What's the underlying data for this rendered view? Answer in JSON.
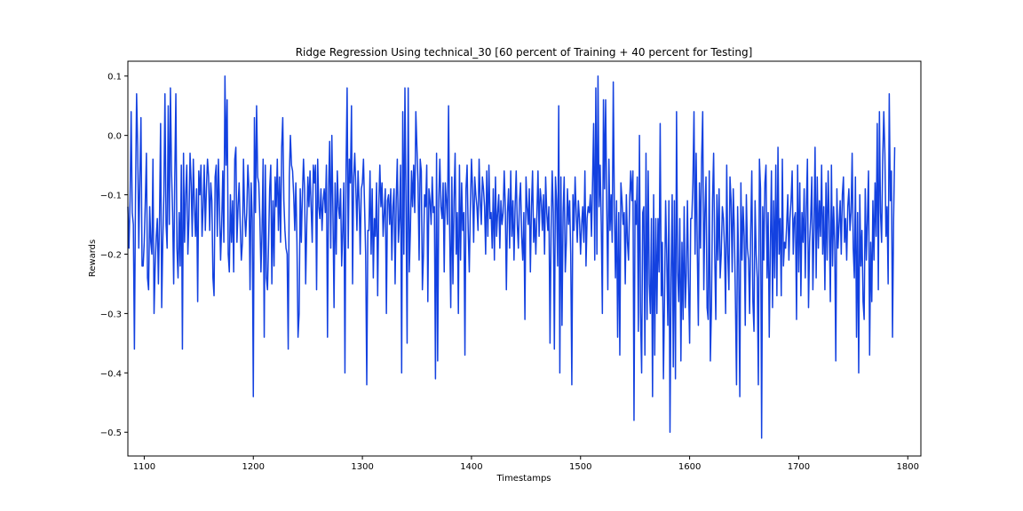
{
  "chart_data": {
    "type": "line",
    "title": "Ridge Regression Using technical_30 [60 percent of Training + 40 percent for Testing]",
    "xlabel": "Timestamps",
    "ylabel": "Rewards",
    "xlim": [
      1085,
      1812
    ],
    "ylim": [
      -0.54,
      0.125
    ],
    "xticks": [
      1100,
      1200,
      1300,
      1400,
      1500,
      1600,
      1700,
      1800
    ],
    "yticks": [
      0.1,
      0.0,
      -0.1,
      -0.2,
      -0.3,
      -0.4,
      -0.5
    ],
    "xtick_labels": [
      "1100",
      "1200",
      "1300",
      "1400",
      "1500",
      "1600",
      "1700",
      "1800"
    ],
    "ytick_labels": [
      "0.1",
      "0.0",
      "−0.1",
      "−0.2",
      "−0.3",
      "−0.4",
      "−0.5"
    ],
    "grid": false,
    "legend": "none",
    "colors": {
      "line": "#1341e0"
    },
    "series": [
      {
        "x_start": 1085,
        "x_step": 1,
        "values": [
          -0.12,
          -0.19,
          -0.11,
          0.04,
          -0.13,
          -0.15,
          -0.36,
          -0.1,
          0.07,
          -0.02,
          -0.19,
          -0.07,
          0.03,
          -0.22,
          -0.22,
          -0.18,
          -0.11,
          -0.03,
          -0.24,
          -0.26,
          -0.12,
          -0.18,
          -0.2,
          -0.04,
          -0.3,
          -0.22,
          -0.17,
          -0.14,
          -0.25,
          -0.14,
          0.02,
          -0.29,
          -0.18,
          -0.1,
          0.07,
          -0.15,
          -0.19,
          0.05,
          -0.15,
          0.08,
          -0.06,
          -0.13,
          -0.25,
          -0.07,
          0.07,
          -0.19,
          -0.24,
          -0.13,
          -0.22,
          -0.05,
          -0.36,
          -0.03,
          -0.18,
          -0.1,
          -0.05,
          -0.2,
          -0.14,
          -0.03,
          -0.08,
          -0.17,
          -0.04,
          -0.12,
          -0.17,
          -0.09,
          -0.28,
          -0.06,
          -0.1,
          -0.05,
          -0.17,
          -0.12,
          -0.05,
          -0.16,
          -0.09,
          -0.04,
          -0.07,
          -0.16,
          -0.08,
          -0.11,
          -0.24,
          -0.27,
          -0.07,
          -0.05,
          -0.17,
          -0.04,
          -0.12,
          -0.21,
          -0.15,
          -0.06,
          -0.18,
          0.1,
          -0.05,
          0.06,
          -0.2,
          -0.23,
          -0.1,
          -0.18,
          -0.11,
          -0.23,
          -0.04,
          -0.02,
          -0.18,
          -0.12,
          -0.08,
          -0.15,
          -0.21,
          -0.18,
          -0.04,
          -0.13,
          -0.17,
          -0.13,
          -0.05,
          -0.09,
          -0.26,
          -0.08,
          -0.14,
          -0.44,
          0.03,
          -0.13,
          0.05,
          -0.07,
          -0.08,
          -0.14,
          -0.23,
          -0.16,
          -0.04,
          -0.34,
          -0.05,
          -0.24,
          -0.26,
          -0.18,
          -0.09,
          -0.05,
          -0.25,
          -0.11,
          -0.22,
          -0.07,
          -0.12,
          -0.04,
          -0.16,
          -0.07,
          -0.18,
          -0.02,
          0.03,
          -0.11,
          -0.16,
          -0.19,
          -0.2,
          -0.36,
          -0.07,
          0.0,
          -0.05,
          -0.06,
          -0.1,
          -0.16,
          -0.08,
          -0.18,
          -0.34,
          -0.3,
          -0.09,
          -0.18,
          -0.1,
          -0.04,
          -0.09,
          -0.25,
          -0.15,
          -0.07,
          -0.12,
          -0.06,
          -0.12,
          -0.18,
          -0.05,
          -0.08,
          -0.05,
          -0.26,
          -0.04,
          -0.12,
          -0.14,
          -0.09,
          -0.16,
          -0.11,
          -0.09,
          -0.13,
          -0.05,
          -0.34,
          -0.09,
          -0.01,
          -0.19,
          0.0,
          -0.13,
          -0.29,
          -0.08,
          -0.2,
          -0.06,
          -0.12,
          -0.14,
          -0.09,
          -0.22,
          -0.16,
          -0.08,
          -0.4,
          -0.06,
          0.08,
          -0.19,
          -0.04,
          -0.08,
          0.05,
          -0.25,
          -0.07,
          -0.03,
          -0.09,
          -0.16,
          -0.06,
          -0.11,
          -0.2,
          -0.09,
          -0.08,
          -0.04,
          -0.12,
          -0.2,
          -0.42,
          -0.16,
          -0.16,
          -0.06,
          -0.2,
          -0.09,
          -0.24,
          -0.14,
          -0.17,
          -0.08,
          -0.27,
          -0.12,
          -0.05,
          -0.12,
          -0.08,
          -0.17,
          -0.13,
          -0.09,
          -0.3,
          -0.11,
          -0.1,
          -0.15,
          -0.09,
          -0.21,
          -0.12,
          -0.09,
          -0.25,
          -0.11,
          -0.04,
          -0.18,
          -0.14,
          -0.05,
          -0.4,
          0.04,
          -0.2,
          0.08,
          -0.12,
          -0.35,
          0.08,
          -0.23,
          -0.16,
          -0.06,
          -0.12,
          -0.05,
          -0.13,
          0.04,
          -0.02,
          -0.08,
          -0.21,
          -0.04,
          -0.06,
          -0.26,
          -0.2,
          -0.1,
          -0.12,
          -0.05,
          -0.28,
          -0.09,
          -0.11,
          -0.15,
          -0.07,
          -0.13,
          -0.12,
          -0.41,
          -0.03,
          -0.38,
          -0.11,
          -0.04,
          -0.12,
          -0.14,
          -0.08,
          -0.23,
          -0.08,
          -0.11,
          -0.15,
          0.05,
          -0.16,
          -0.29,
          -0.07,
          -0.25,
          -0.11,
          -0.03,
          -0.2,
          -0.13,
          -0.3,
          -0.05,
          -0.21,
          -0.08,
          -0.16,
          -0.13,
          -0.37,
          -0.09,
          -0.05,
          -0.16,
          -0.23,
          -0.12,
          -0.04,
          -0.09,
          -0.18,
          -0.07,
          -0.1,
          -0.12,
          -0.16,
          -0.04,
          -0.11,
          -0.15,
          -0.07,
          -0.09,
          -0.12,
          -0.2,
          -0.06,
          -0.17,
          -0.05,
          -0.14,
          -0.13,
          -0.19,
          -0.09,
          -0.21,
          -0.07,
          -0.17,
          -0.13,
          -0.1,
          -0.19,
          -0.11,
          -0.15,
          -0.13,
          -0.06,
          -0.12,
          -0.26,
          -0.13,
          -0.09,
          -0.19,
          -0.06,
          -0.17,
          -0.11,
          -0.21,
          -0.12,
          -0.06,
          -0.15,
          -0.19,
          -0.11,
          -0.08,
          -0.17,
          -0.21,
          -0.13,
          -0.31,
          -0.07,
          -0.12,
          -0.15,
          -0.09,
          -0.23,
          -0.12,
          -0.06,
          -0.18,
          -0.14,
          -0.2,
          -0.13,
          -0.06,
          -0.17,
          -0.09,
          -0.11,
          -0.16,
          -0.1,
          -0.2,
          -0.07,
          -0.13,
          -0.16,
          -0.12,
          -0.35,
          -0.16,
          -0.06,
          -0.13,
          -0.36,
          -0.07,
          -0.11,
          -0.22,
          0.05,
          -0.4,
          -0.07,
          -0.32,
          -0.13,
          -0.07,
          -0.23,
          -0.18,
          -0.09,
          -0.15,
          -0.11,
          -0.2,
          -0.42,
          -0.1,
          -0.16,
          -0.07,
          -0.13,
          -0.18,
          -0.11,
          -0.14,
          -0.2,
          -0.15,
          -0.12,
          -0.18,
          -0.06,
          -0.22,
          -0.14,
          -0.12,
          -0.13,
          -0.1,
          -0.17,
          -0.08,
          0.02,
          -0.21,
          0.08,
          -0.2,
          0.1,
          -0.12,
          -0.05,
          -0.15,
          -0.3,
          0.06,
          -0.09,
          0.06,
          -0.12,
          -0.26,
          -0.04,
          -0.16,
          -0.1,
          -0.18,
          0.09,
          -0.12,
          -0.24,
          -0.11,
          -0.34,
          -0.13,
          -0.37,
          -0.08,
          -0.11,
          -0.15,
          -0.13,
          -0.25,
          -0.1,
          -0.18,
          -0.21,
          -0.11,
          -0.06,
          -0.11,
          -0.06,
          -0.48,
          -0.11,
          -0.15,
          -0.07,
          -0.33,
          0.0,
          -0.3,
          -0.4,
          -0.13,
          -0.12,
          -0.37,
          -0.03,
          -0.31,
          -0.06,
          -0.25,
          -0.3,
          -0.14,
          -0.44,
          -0.1,
          -0.37,
          -0.14,
          -0.3,
          -0.14,
          -0.23,
          0.02,
          -0.27,
          -0.18,
          -0.41,
          -0.27,
          -0.11,
          -0.2,
          -0.32,
          -0.11,
          -0.5,
          -0.24,
          -0.1,
          -0.39,
          -0.11,
          -0.41,
          0.04,
          -0.23,
          -0.28,
          -0.14,
          -0.38,
          -0.18,
          -0.31,
          -0.12,
          -0.29,
          -0.23,
          -0.11,
          -0.25,
          -0.35,
          -0.14,
          -0.14,
          -0.08,
          0.04,
          -0.2,
          -0.03,
          -0.19,
          -0.32,
          -0.08,
          -0.19,
          -0.04,
          0.04,
          -0.26,
          -0.13,
          -0.07,
          -0.29,
          -0.31,
          -0.06,
          -0.38,
          -0.29,
          -0.11,
          -0.03,
          -0.2,
          -0.31,
          -0.1,
          -0.21,
          -0.09,
          -0.24,
          -0.2,
          -0.12,
          -0.14,
          -0.19,
          -0.3,
          -0.05,
          -0.2,
          -0.26,
          -0.07,
          -0.11,
          -0.23,
          -0.09,
          -0.16,
          -0.28,
          -0.42,
          -0.12,
          -0.22,
          -0.44,
          -0.08,
          -0.21,
          -0.12,
          -0.17,
          -0.32,
          -0.1,
          -0.19,
          -0.21,
          -0.3,
          -0.16,
          -0.06,
          -0.28,
          -0.33,
          -0.11,
          -0.2,
          -0.24,
          -0.42,
          -0.04,
          -0.09,
          -0.51,
          -0.12,
          -0.21,
          -0.08,
          -0.05,
          -0.24,
          -0.13,
          -0.34,
          -0.19,
          -0.06,
          -0.29,
          -0.11,
          -0.24,
          -0.05,
          -0.27,
          -0.02,
          -0.2,
          -0.14,
          -0.27,
          -0.04,
          -0.22,
          -0.18,
          -0.19,
          -0.15,
          -0.1,
          -0.21,
          -0.14,
          -0.11,
          -0.06,
          -0.2,
          -0.14,
          -0.13,
          -0.31,
          -0.05,
          -0.23,
          -0.08,
          -0.27,
          -0.13,
          -0.18,
          -0.09,
          -0.24,
          -0.12,
          -0.04,
          -0.29,
          -0.18,
          -0.14,
          -0.07,
          -0.26,
          -0.16,
          -0.02,
          -0.24,
          -0.07,
          -0.19,
          -0.11,
          -0.17,
          -0.05,
          -0.2,
          -0.12,
          -0.26,
          -0.08,
          -0.21,
          -0.06,
          -0.15,
          -0.28,
          -0.05,
          -0.22,
          -0.12,
          -0.18,
          -0.38,
          -0.09,
          -0.19,
          -0.15,
          -0.11,
          -0.2,
          -0.1,
          -0.07,
          -0.18,
          -0.14,
          -0.21,
          -0.12,
          -0.09,
          -0.16,
          -0.13,
          -0.03,
          -0.19,
          -0.24,
          -0.07,
          -0.34,
          -0.13,
          -0.4,
          -0.1,
          -0.22,
          -0.16,
          -0.28,
          -0.31,
          -0.09,
          -0.21,
          -0.14,
          -0.06,
          -0.37,
          -0.18,
          -0.28,
          -0.11,
          -0.21,
          -0.08,
          -0.17,
          0.02,
          -0.26,
          0.04,
          -0.13,
          -0.18,
          -0.04,
          0.04,
          -0.03,
          -0.17,
          -0.12,
          -0.25,
          0.07,
          -0.11,
          -0.06,
          -0.34,
          -0.14,
          -0.02
        ]
      }
    ]
  }
}
